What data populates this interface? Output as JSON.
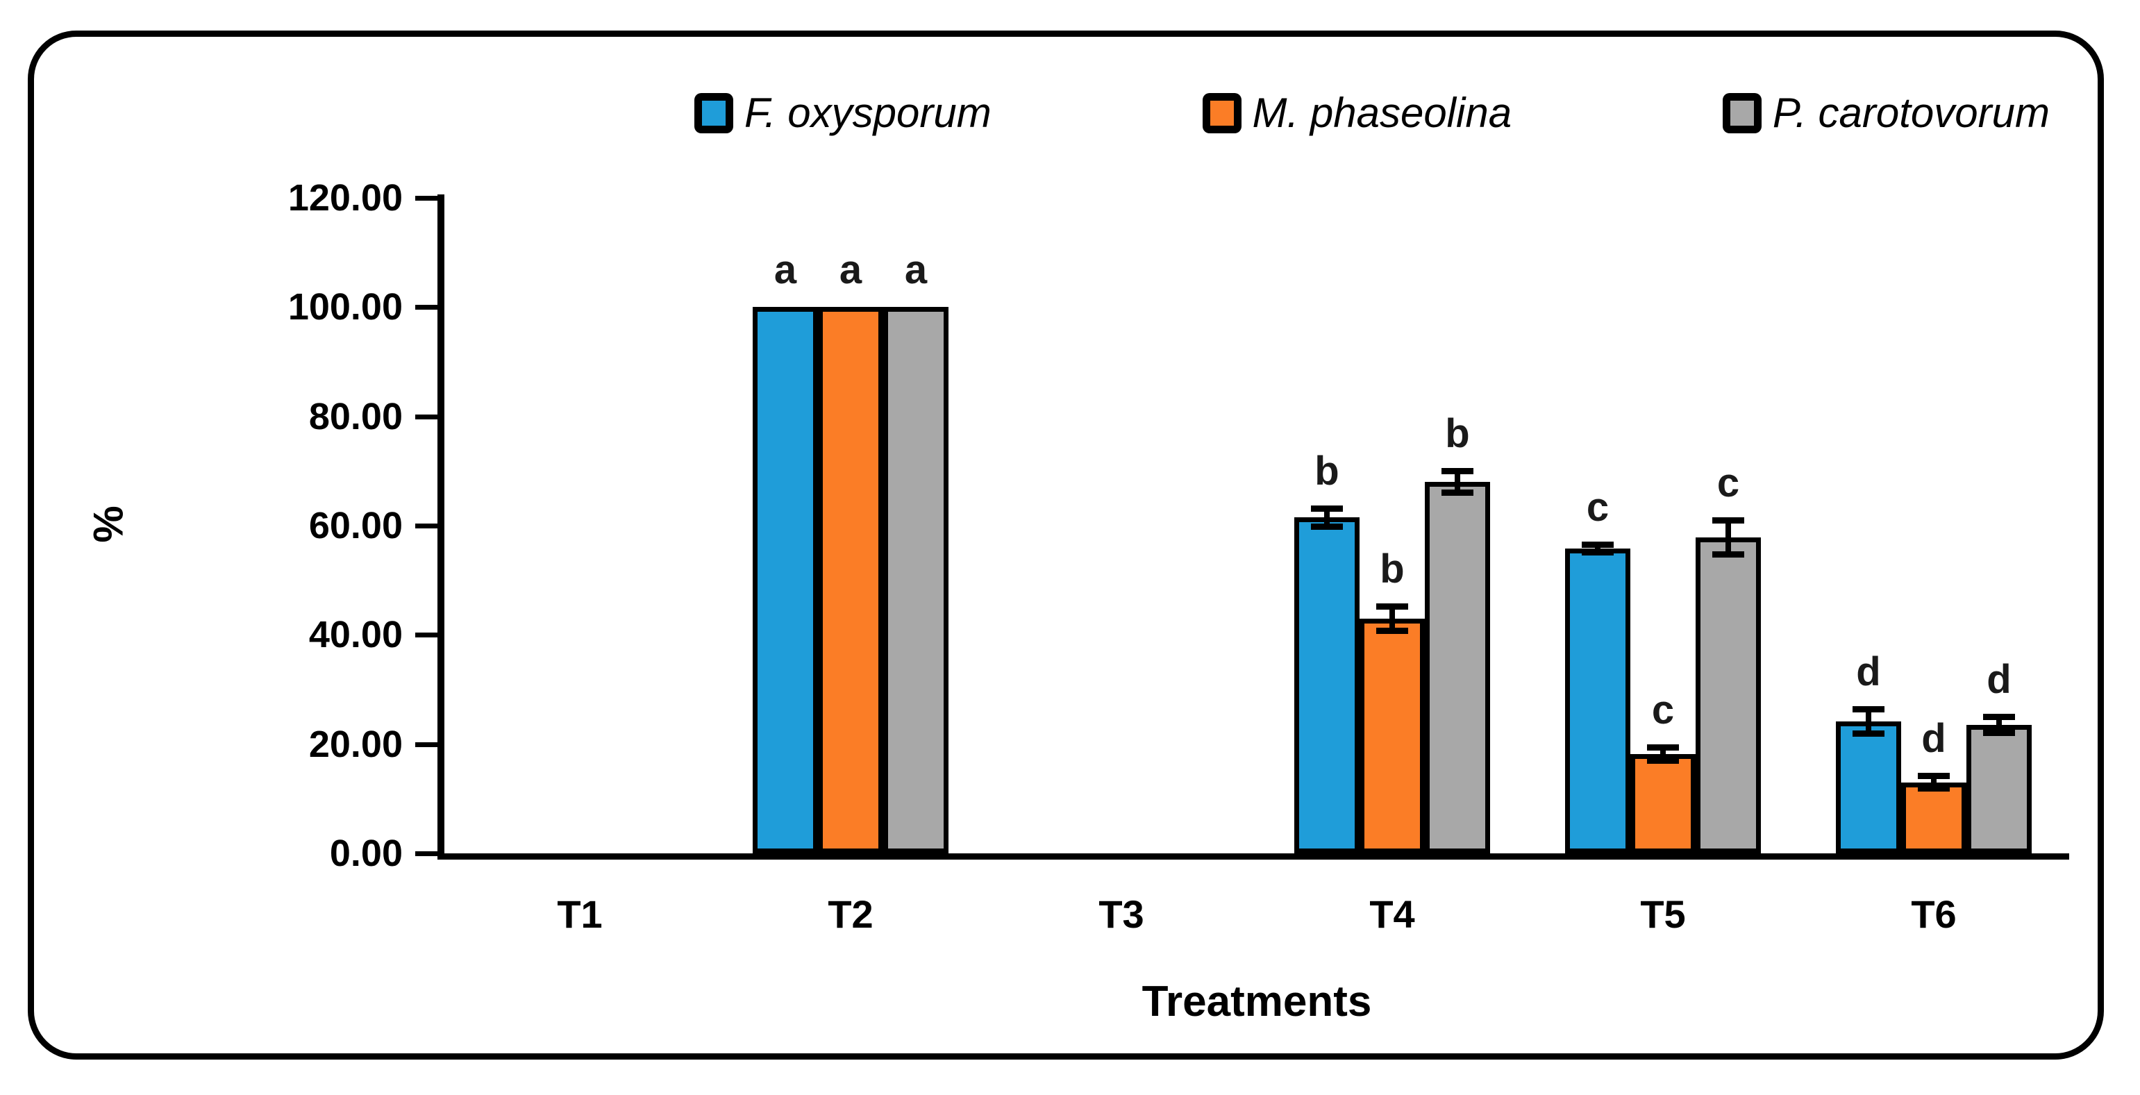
{
  "figure": {
    "kind": "grouped-bar-figure",
    "frame_border_color": "#000000",
    "background_color": "#ffffff"
  },
  "chart_data": {
    "type": "bar",
    "title": "",
    "xlabel": "Treatments",
    "ylabel": "%",
    "ylim": [
      0,
      120
    ],
    "ytick_step": 20,
    "ytick_labels": [
      "0.00",
      "20.00",
      "40.00",
      "60.00",
      "80.00",
      "100.00",
      "120.00"
    ],
    "categories": [
      "T1",
      "T2",
      "T3",
      "T4",
      "T5",
      "T6"
    ],
    "grid": false,
    "legend_position": "top",
    "bar_border_color": "#000000",
    "error_bar_color": "#000000",
    "series": [
      {
        "name": "F. oxysporum",
        "color": "#1F9DD9",
        "values": [
          0,
          100,
          0,
          61.5,
          55.8,
          24.2
        ],
        "errors": [
          0,
          0,
          0,
          1.7,
          0.8,
          2.3
        ],
        "letters": [
          "",
          "a",
          "",
          "b",
          "c",
          "d"
        ]
      },
      {
        "name": "M. phaseolina",
        "color": "#FB7D26",
        "values": [
          0,
          100,
          0,
          43.0,
          18.2,
          13.0
        ],
        "errors": [
          0,
          0,
          0,
          2.3,
          1.3,
          1.2
        ],
        "letters": [
          "",
          "a",
          "",
          "b",
          "c",
          "d"
        ]
      },
      {
        "name": "P. carotovorum",
        "color": "#A8A8A8",
        "values": [
          0,
          100,
          0,
          68.0,
          57.8,
          23.5
        ],
        "errors": [
          0,
          0,
          0,
          2.0,
          3.2,
          1.5
        ],
        "letters": [
          "",
          "a",
          "",
          "b",
          "c",
          "d"
        ]
      }
    ]
  }
}
